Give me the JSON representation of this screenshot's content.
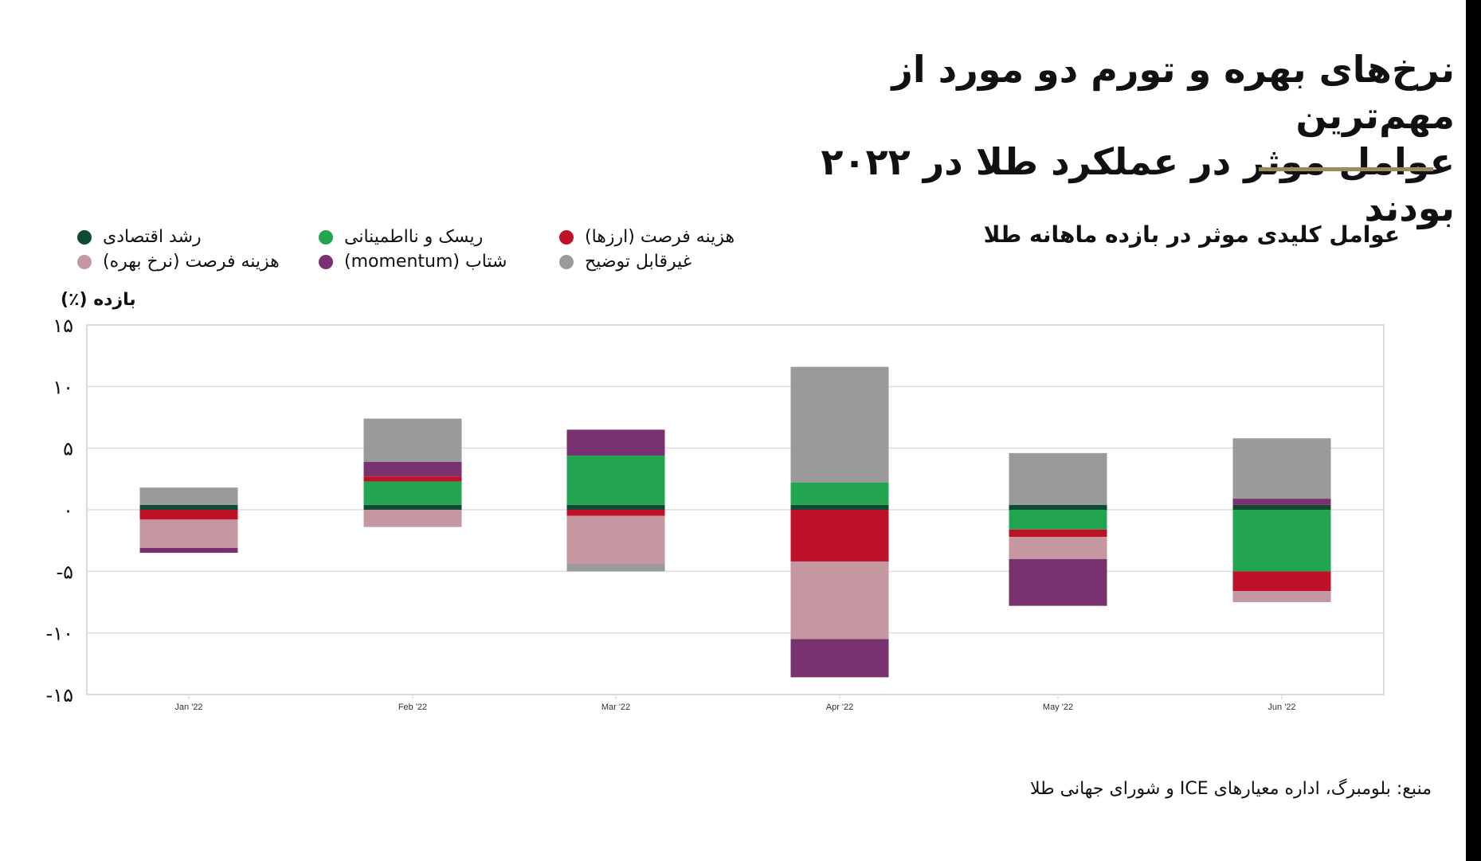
{
  "title_lines": [
    "نرخ‌های بهره و تورم دو مورد از مهم‌ترین",
    "عوامل موثر در عملکرد طلا در ۲۰۲۲ بودند"
  ],
  "accent_color": "#9c8a5a",
  "subtitle": "عوامل کلیدی موثر در بازده ماهانه طلا",
  "source": "منبع: بلومبرگ، اداره معیارهای ICE و شورای جهانی طلا",
  "chart_data": {
    "type": "bar",
    "stacked": true,
    "ylabel": "بازده (٪)",
    "ylim": [
      -15,
      15
    ],
    "yticks": [
      15,
      10,
      5,
      0,
      -5,
      -10,
      -15
    ],
    "ytick_labels": [
      "۱۵",
      "۱۰",
      "۵",
      "۰",
      "-۵",
      "-۱۰",
      "-۱۵"
    ],
    "grid": true,
    "legend_placement": "top-left",
    "categories": [
      "Jan '22",
      "Feb '22",
      "Mar '22",
      "Apr '22",
      "May '22",
      "Jun '22"
    ],
    "series": [
      {
        "name": "رشد اقتصادی",
        "color": "#0f4a32",
        "values": [
          0.4,
          0.4,
          0.4,
          0.4,
          0.4,
          0.4
        ]
      },
      {
        "name": "ریسک و نااطمینانی",
        "color": "#23a450",
        "values": [
          0,
          1.9,
          4.0,
          1.8,
          -1.6,
          -5.0
        ]
      },
      {
        "name": "هزینه فرصت (ارزها)",
        "color": "#be1229",
        "values": [
          -0.8,
          0.4,
          -0.5,
          -4.2,
          -0.6,
          -1.6
        ]
      },
      {
        "name": "هزینه فرصت (نرخ بهره)",
        "color": "#c497a1",
        "values": [
          -2.3,
          -1.4,
          -3.9,
          -6.3,
          -1.8,
          -0.9
        ]
      },
      {
        "name": "شتاب (momentum)",
        "color": "#7a316f",
        "values": [
          -0.4,
          1.2,
          2.1,
          -3.1,
          -3.8,
          0.5
        ]
      },
      {
        "name": "غیرقابل توضیح",
        "color": "#9a9a9a",
        "values": [
          1.4,
          3.5,
          -0.6,
          9.4,
          4.2,
          4.9
        ]
      }
    ]
  }
}
